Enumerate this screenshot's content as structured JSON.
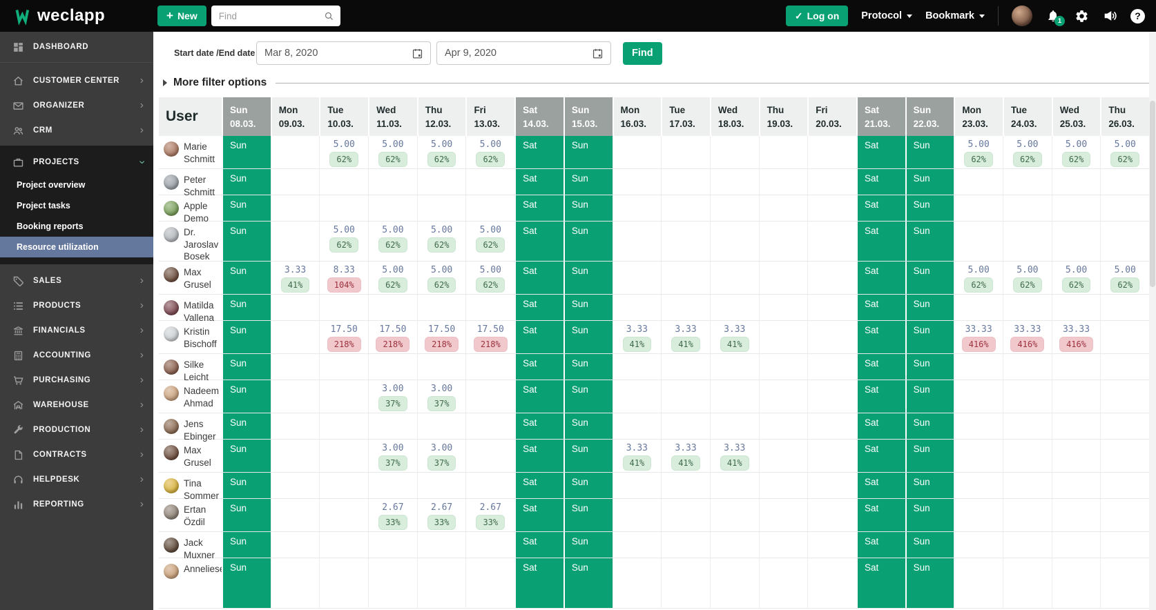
{
  "topbar": {
    "logo_text": "weclapp",
    "new_button": "New",
    "search_placeholder": "Find",
    "logon_button": "Log on",
    "protocol_menu": "Protocol",
    "bookmark_menu": "Bookmark",
    "notification_count": "1",
    "help_glyph": "?"
  },
  "sidebar": {
    "items": [
      {
        "label": "DASHBOARD",
        "icon": "dashboard",
        "top": true
      },
      {
        "label": "CUSTOMER CENTER",
        "icon": "home",
        "chevron": "right"
      },
      {
        "label": "ORGANIZER",
        "icon": "envelope",
        "chevron": "right"
      },
      {
        "label": "CRM",
        "icon": "users",
        "chevron": "right"
      },
      {
        "label": "PROJECTS",
        "icon": "briefcase",
        "chevron": "down",
        "expanded": true,
        "children": [
          {
            "label": "Project overview"
          },
          {
            "label": "Project tasks"
          },
          {
            "label": "Booking reports"
          },
          {
            "label": "Resource utilization",
            "active": true
          }
        ]
      },
      {
        "label": "SALES",
        "icon": "tag",
        "chevron": "right"
      },
      {
        "label": "PRODUCTS",
        "icon": "list",
        "chevron": "right"
      },
      {
        "label": "FINANCIALS",
        "icon": "bank",
        "chevron": "right"
      },
      {
        "label": "ACCOUNTING",
        "icon": "calculator",
        "chevron": "right"
      },
      {
        "label": "PURCHASING",
        "icon": "cart",
        "chevron": "right"
      },
      {
        "label": "WAREHOUSE",
        "icon": "warehouse",
        "chevron": "right"
      },
      {
        "label": "PRODUCTION",
        "icon": "wrench",
        "chevron": "right"
      },
      {
        "label": "CONTRACTS",
        "icon": "document",
        "chevron": "right"
      },
      {
        "label": "HELPDESK",
        "icon": "headset",
        "chevron": "right"
      },
      {
        "label": "REPORTING",
        "icon": "chart",
        "chevron": "right"
      }
    ]
  },
  "filters": {
    "date_label": "Start date /End date",
    "start_date": "Mar 8, 2020",
    "end_date": "Apr 9, 2020",
    "find_button": "Find",
    "more_filters_label": "More filter options"
  },
  "table": {
    "user_header": "User",
    "columns": [
      {
        "day": "Sun",
        "date": "08.03.",
        "weekend": true
      },
      {
        "day": "Mon",
        "date": "09.03."
      },
      {
        "day": "Tue",
        "date": "10.03."
      },
      {
        "day": "Wed",
        "date": "11.03."
      },
      {
        "day": "Thu",
        "date": "12.03."
      },
      {
        "day": "Fri",
        "date": "13.03."
      },
      {
        "day": "Sat",
        "date": "14.03.",
        "weekend": true
      },
      {
        "day": "Sun",
        "date": "15.03.",
        "weekend": true
      },
      {
        "day": "Mon",
        "date": "16.03."
      },
      {
        "day": "Tue",
        "date": "17.03."
      },
      {
        "day": "Wed",
        "date": "18.03."
      },
      {
        "day": "Thu",
        "date": "19.03."
      },
      {
        "day": "Fri",
        "date": "20.03."
      },
      {
        "day": "Sat",
        "date": "21.03.",
        "weekend": true
      },
      {
        "day": "Sun",
        "date": "22.03.",
        "weekend": true
      },
      {
        "day": "Mon",
        "date": "23.03."
      },
      {
        "day": "Tue",
        "date": "24.03."
      },
      {
        "day": "Wed",
        "date": "25.03."
      },
      {
        "day": "Thu",
        "date": "26.03."
      }
    ],
    "rows": [
      {
        "name_lines": [
          "Marie",
          "Schmitt"
        ],
        "avatar_color": "#ad7a63",
        "values": [
          null,
          null,
          {
            "hours": "5.00",
            "pct": "62%"
          },
          {
            "hours": "5.00",
            "pct": "62%"
          },
          {
            "hours": "5.00",
            "pct": "62%"
          },
          {
            "hours": "5.00",
            "pct": "62%"
          },
          null,
          null,
          null,
          null,
          null,
          null,
          null,
          null,
          null,
          {
            "hours": "5.00",
            "pct": "62%"
          },
          {
            "hours": "5.00",
            "pct": "62%"
          },
          {
            "hours": "5.00",
            "pct": "62%"
          },
          {
            "hours": "5.00",
            "pct": "62%"
          }
        ]
      },
      {
        "name_lines": [
          "Peter",
          "Schmitt"
        ],
        "avatar_color": "#9aa0a8",
        "values": [
          null,
          null,
          null,
          null,
          null,
          null,
          null,
          null,
          null,
          null,
          null,
          null,
          null,
          null,
          null,
          null,
          null,
          null,
          null
        ]
      },
      {
        "name_lines": [
          "Apple",
          "Demo"
        ],
        "avatar_color": "#7ba05c",
        "values": [
          null,
          null,
          null,
          null,
          null,
          null,
          null,
          null,
          null,
          null,
          null,
          null,
          null,
          null,
          null,
          null,
          null,
          null,
          null
        ]
      },
      {
        "name_lines": [
          "Dr.",
          "Jaroslav",
          "Bosek"
        ],
        "avatar_color": "#b4b8bc",
        "values": [
          null,
          null,
          {
            "hours": "5.00",
            "pct": "62%"
          },
          {
            "hours": "5.00",
            "pct": "62%"
          },
          {
            "hours": "5.00",
            "pct": "62%"
          },
          {
            "hours": "5.00",
            "pct": "62%"
          },
          null,
          null,
          null,
          null,
          null,
          null,
          null,
          null,
          null,
          null,
          null,
          null,
          null
        ]
      },
      {
        "name_lines": [
          "Max",
          "Grusel"
        ],
        "avatar_color": "#6e4f3f",
        "values": [
          null,
          {
            "hours": "3.33",
            "pct": "41%"
          },
          {
            "hours": "8.33",
            "pct": "104%",
            "over": true
          },
          {
            "hours": "5.00",
            "pct": "62%"
          },
          {
            "hours": "5.00",
            "pct": "62%"
          },
          {
            "hours": "5.00",
            "pct": "62%"
          },
          null,
          null,
          null,
          null,
          null,
          null,
          null,
          null,
          null,
          {
            "hours": "5.00",
            "pct": "62%"
          },
          {
            "hours": "5.00",
            "pct": "62%"
          },
          {
            "hours": "5.00",
            "pct": "62%"
          },
          {
            "hours": "5.00",
            "pct": "62%"
          }
        ]
      },
      {
        "name_lines": [
          "Matilda",
          "Vallena"
        ],
        "avatar_color": "#7d4a52",
        "values": [
          null,
          null,
          null,
          null,
          null,
          null,
          null,
          null,
          null,
          null,
          null,
          null,
          null,
          null,
          null,
          null,
          null,
          null,
          null
        ]
      },
      {
        "name_lines": [
          "Kristin",
          "Bischoff"
        ],
        "avatar_color": "#ccd0d3",
        "values": [
          null,
          null,
          {
            "hours": "17.50",
            "pct": "218%",
            "over": true
          },
          {
            "hours": "17.50",
            "pct": "218%",
            "over": true
          },
          {
            "hours": "17.50",
            "pct": "218%",
            "over": true
          },
          {
            "hours": "17.50",
            "pct": "218%",
            "over": true
          },
          null,
          null,
          {
            "hours": "3.33",
            "pct": "41%"
          },
          {
            "hours": "3.33",
            "pct": "41%"
          },
          {
            "hours": "3.33",
            "pct": "41%"
          },
          null,
          null,
          null,
          null,
          {
            "hours": "33.33",
            "pct": "416%",
            "over": true
          },
          {
            "hours": "33.33",
            "pct": "416%",
            "over": true
          },
          {
            "hours": "33.33",
            "pct": "416%",
            "over": true
          },
          null
        ]
      },
      {
        "name_lines": [
          "Silke",
          "Leicht"
        ],
        "avatar_color": "#8a5f4d",
        "values": [
          null,
          null,
          null,
          null,
          null,
          null,
          null,
          null,
          null,
          null,
          null,
          null,
          null,
          null,
          null,
          null,
          null,
          null,
          null
        ]
      },
      {
        "name_lines": [
          "Nadeem",
          "Ahmad"
        ],
        "avatar_color": "#caa27e",
        "values": [
          null,
          null,
          null,
          {
            "hours": "3.00",
            "pct": "37%"
          },
          {
            "hours": "3.00",
            "pct": "37%"
          },
          null,
          null,
          null,
          null,
          null,
          null,
          null,
          null,
          null,
          null,
          null,
          null,
          null,
          null
        ]
      },
      {
        "name_lines": [
          "Jens",
          "Ebinger"
        ],
        "avatar_color": "#8b6a52",
        "values": [
          null,
          null,
          null,
          null,
          null,
          null,
          null,
          null,
          null,
          null,
          null,
          null,
          null,
          null,
          null,
          null,
          null,
          null,
          null
        ]
      },
      {
        "name_lines": [
          "Max",
          "Grusel"
        ],
        "avatar_color": "#6e4f3f",
        "values": [
          null,
          null,
          null,
          {
            "hours": "3.00",
            "pct": "37%"
          },
          {
            "hours": "3.00",
            "pct": "37%"
          },
          null,
          null,
          null,
          {
            "hours": "3.33",
            "pct": "41%"
          },
          {
            "hours": "3.33",
            "pct": "41%"
          },
          {
            "hours": "3.33",
            "pct": "41%"
          },
          null,
          null,
          null,
          null,
          null,
          null,
          null,
          null
        ]
      },
      {
        "name_lines": [
          "Tina",
          "Sommer"
        ],
        "avatar_color": "#d9b23e",
        "values": [
          null,
          null,
          null,
          null,
          null,
          null,
          null,
          null,
          null,
          null,
          null,
          null,
          null,
          null,
          null,
          null,
          null,
          null,
          null
        ]
      },
      {
        "name_lines": [
          "Ertan",
          "Özdil"
        ],
        "avatar_color": "#8f8377",
        "values": [
          null,
          null,
          null,
          {
            "hours": "2.67",
            "pct": "33%"
          },
          {
            "hours": "2.67",
            "pct": "33%"
          },
          {
            "hours": "2.67",
            "pct": "33%"
          },
          null,
          null,
          null,
          null,
          null,
          null,
          null,
          null,
          null,
          null,
          null,
          null,
          null
        ]
      },
      {
        "name_lines": [
          "Jack",
          "Muxner"
        ],
        "avatar_color": "#5f4a3a",
        "values": [
          null,
          null,
          null,
          null,
          null,
          null,
          null,
          null,
          null,
          null,
          null,
          null,
          null,
          null,
          null,
          null,
          null,
          null,
          null
        ]
      },
      {
        "name_lines": [
          "Anneliese"
        ],
        "avatar_color": "#c9a07a",
        "values": [
          null,
          null,
          null,
          null,
          null,
          null,
          null,
          null,
          null,
          null,
          null,
          null,
          null,
          null,
          null,
          null,
          null,
          null,
          null
        ]
      }
    ]
  },
  "colors": {
    "brand_green": "#09A173",
    "weekend_header": "#9BA19F",
    "badge_ok_bg": "#D9EDDC",
    "badge_ok_text": "#3F6A4A",
    "badge_over_bg": "#F1C9CD",
    "badge_over_text": "#9C313C",
    "hours_text": "#66779E",
    "active_nav": "#64789E"
  }
}
